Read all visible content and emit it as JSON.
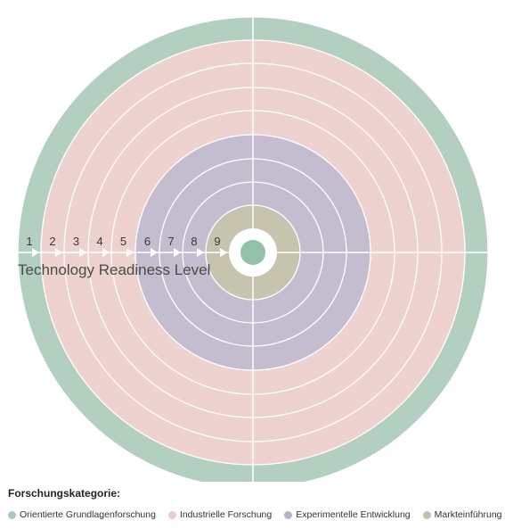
{
  "diagram": {
    "title": "Technology Readiness Level",
    "levels": [
      "1",
      "2",
      "3",
      "4",
      "5",
      "6",
      "7",
      "8",
      "9"
    ]
  },
  "categories": [
    {
      "label": "Orientierte Grundlagenforschung",
      "color": "#b3cfc0",
      "levels": [
        "1"
      ]
    },
    {
      "label": "Industrielle Forschung",
      "color": "#eed2cf",
      "levels": [
        "2",
        "3",
        "4",
        "5"
      ]
    },
    {
      "label": "Experimentelle Entwicklung",
      "color": "#c4bccf",
      "levels": [
        "6",
        "7",
        "8"
      ]
    },
    {
      "label": "Markteinführung",
      "color": "#c6c3af",
      "levels": [
        "9"
      ]
    }
  ],
  "center_color": "#92c1aa",
  "legend": {
    "heading": "Forschungskategorie:",
    "items": [
      {
        "label": "Orientierte Grundlagenforschung",
        "color": "#a9cbbb"
      },
      {
        "label": "Industrielle Forschung",
        "color": "#eccdca"
      },
      {
        "label": "Experimentelle Entwicklung",
        "color": "#b9b2c8"
      },
      {
        "label": "Markteinführung",
        "color": "#c2bfab"
      }
    ]
  }
}
